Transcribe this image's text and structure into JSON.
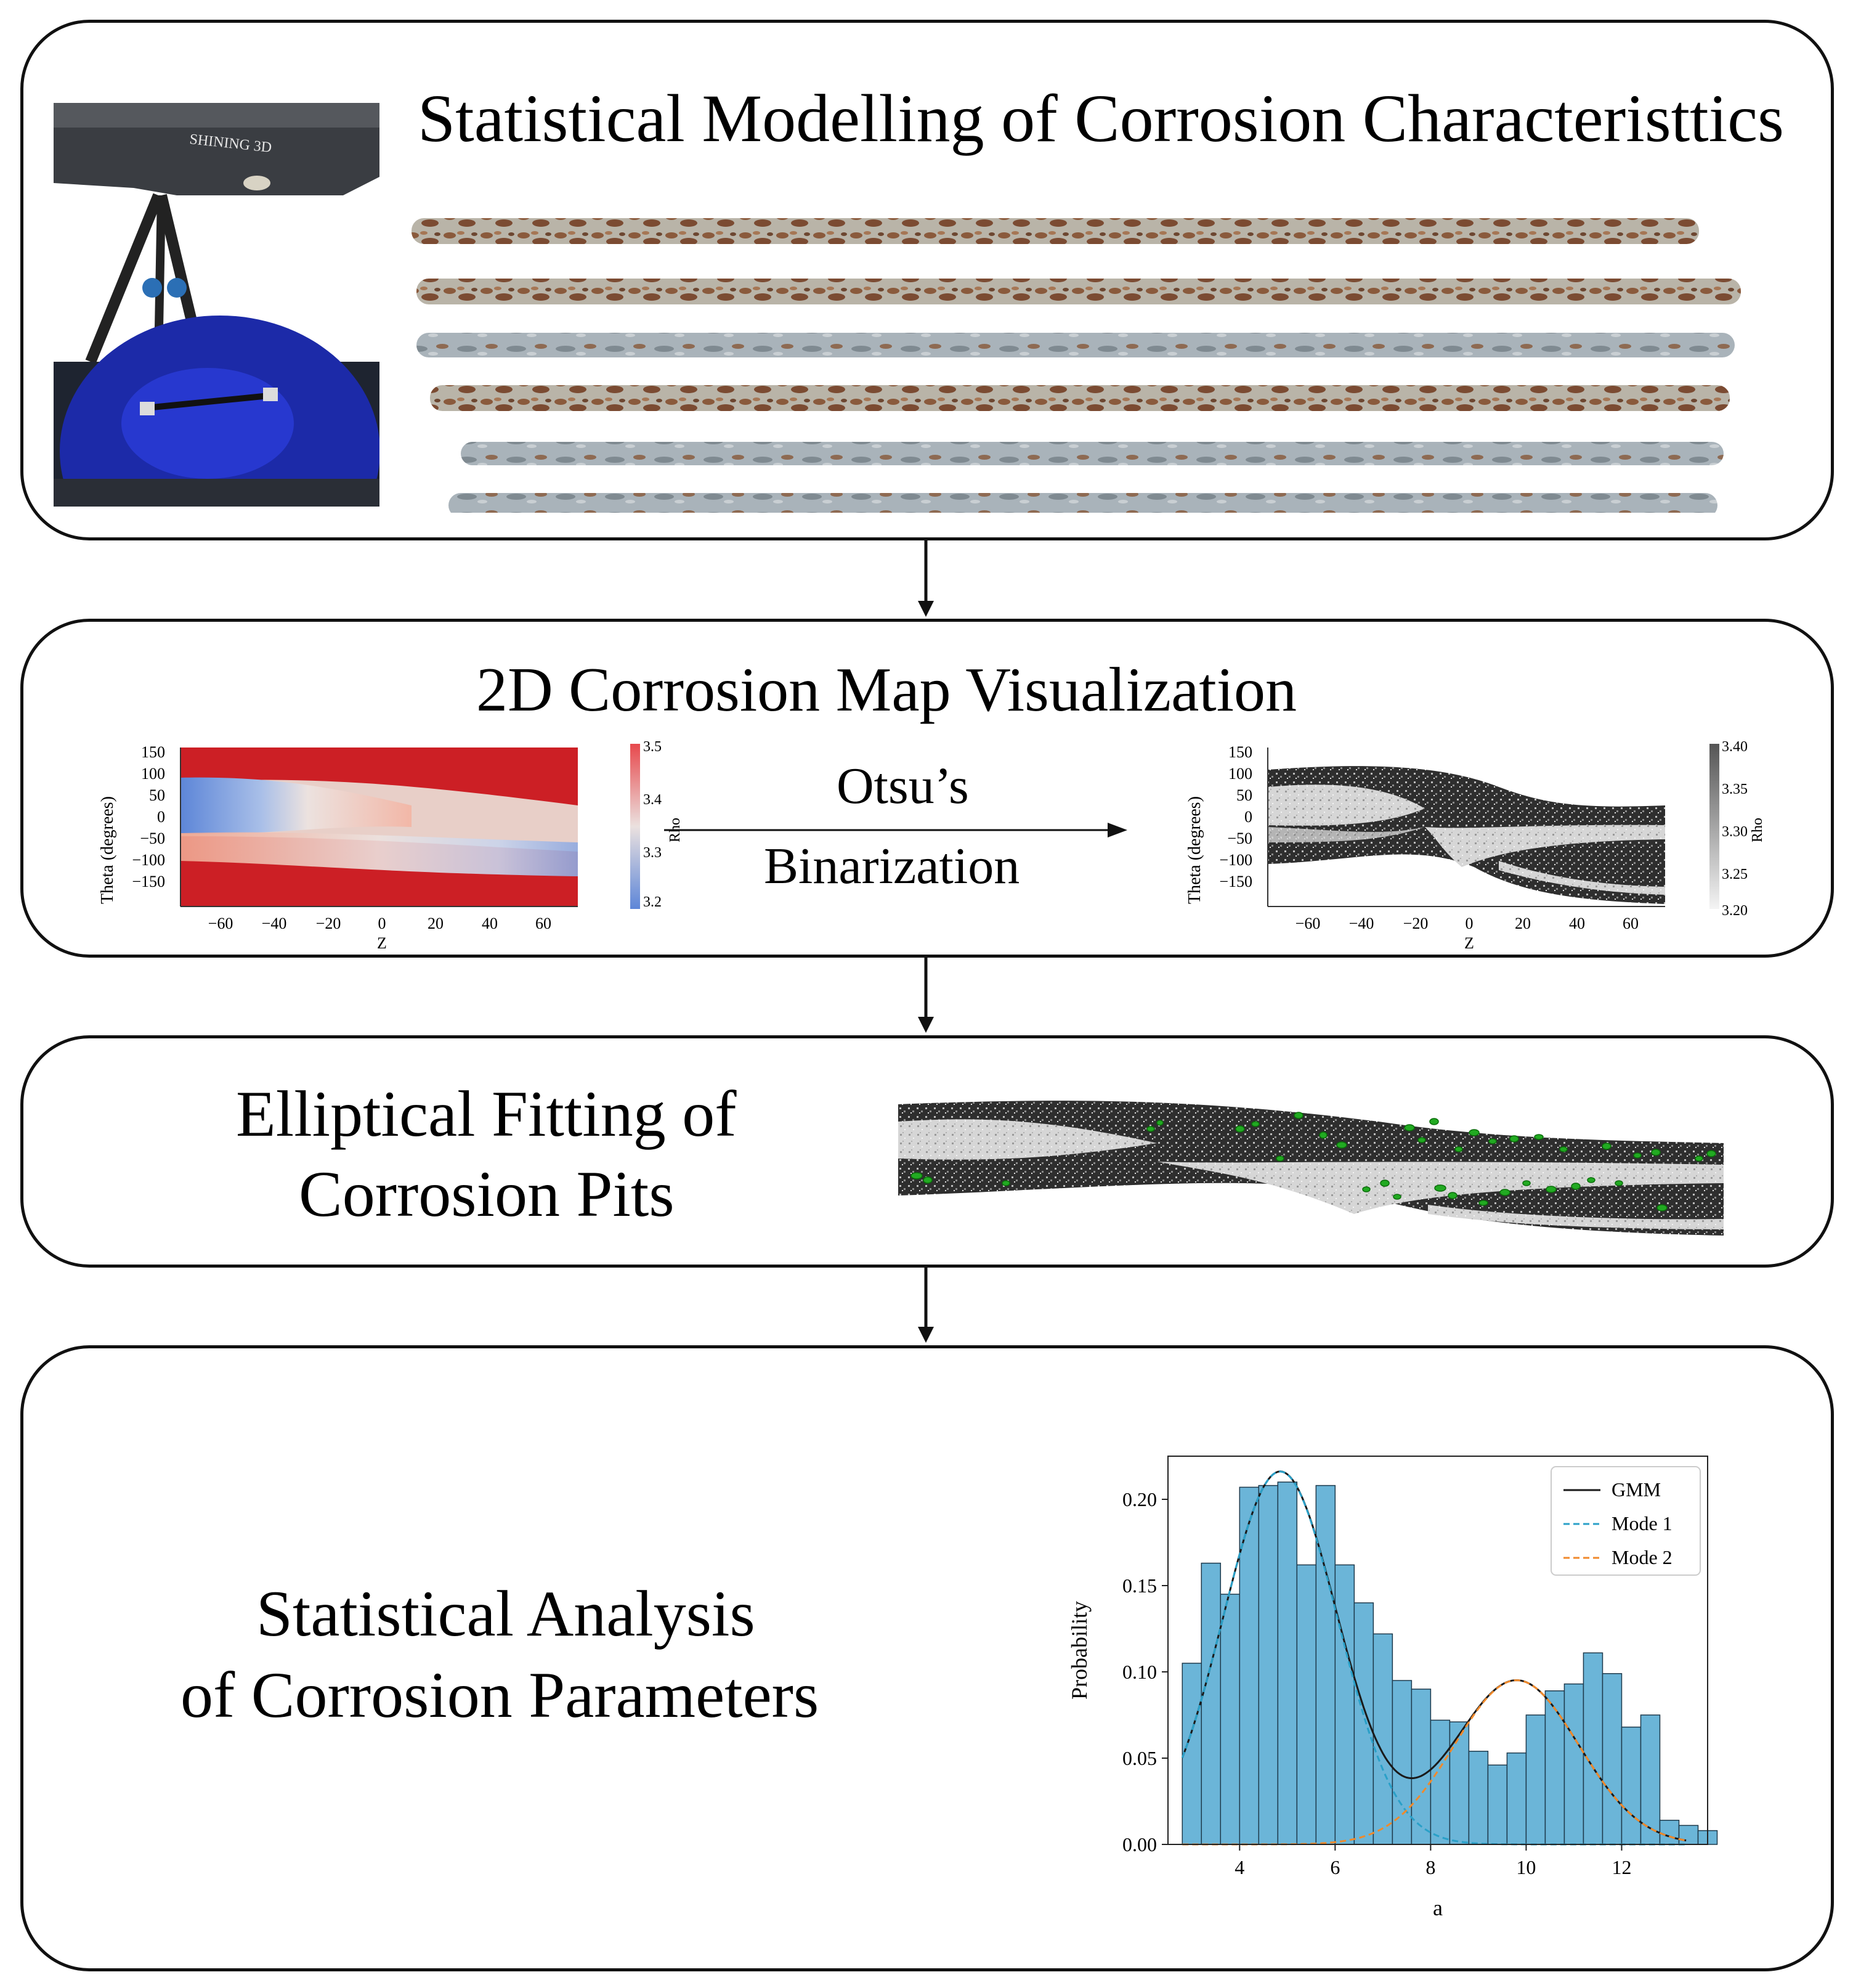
{
  "stage1": {
    "title": "Statistical Modelling of Corrosion Characteristtics",
    "scanner_brand": "SHINING 3D"
  },
  "stage2": {
    "title": "2D Corrosion Map Visualization",
    "arrow_label_line1": "Otsu’s",
    "arrow_label_line2": "Binarization",
    "map_left": {
      "ylabel": "Theta (degrees)",
      "xlabel": "Z",
      "yticks": [
        "150",
        "100",
        "50",
        "0",
        "−50",
        "−100",
        "−150"
      ],
      "xticks": [
        "−60",
        "−40",
        "−20",
        "0",
        "20",
        "40",
        "60"
      ],
      "colorbar_label": "Rho",
      "colorbar_ticks": [
        "3.5",
        "3.4",
        "3.3",
        "3.2"
      ],
      "colors": {
        "high": "#cc1f25",
        "low": "#5d86d8",
        "mid": "#e9e3e2"
      }
    },
    "map_right": {
      "ylabel": "Theta (degrees)",
      "xlabel": "Z",
      "yticks": [
        "150",
        "100",
        "50",
        "0",
        "−50",
        "−100",
        "−150"
      ],
      "xticks": [
        "−60",
        "−40",
        "−20",
        "0",
        "20",
        "40",
        "60"
      ],
      "colorbar_label": "Rho",
      "colorbar_ticks": [
        "3.40",
        "3.35",
        "3.30",
        "3.25",
        "3.20"
      ]
    }
  },
  "stage3": {
    "title_line1": "Elliptical Fitting of",
    "title_line2": "Corrosion Pits",
    "pit_color": "#22aa22"
  },
  "stage4": {
    "title_line1": "Statistical Analysis",
    "title_line2": "of Corrosion Parameters"
  },
  "chart_data": {
    "type": "bar",
    "title": "",
    "xlabel": "a",
    "ylabel": "Probability",
    "xlim": [
      2.5,
      13.8
    ],
    "ylim": [
      0,
      0.225
    ],
    "xticks": [
      "4",
      "6",
      "8",
      "10",
      "12"
    ],
    "yticks": [
      "0.00",
      "0.05",
      "0.10",
      "0.15",
      "0.20"
    ],
    "bin_edges_start": 2.8,
    "bin_width": 0.4,
    "values": [
      0.105,
      0.163,
      0.145,
      0.207,
      0.208,
      0.21,
      0.162,
      0.208,
      0.162,
      0.14,
      0.122,
      0.095,
      0.09,
      0.072,
      0.071,
      0.054,
      0.046,
      0.053,
      0.075,
      0.089,
      0.093,
      0.111,
      0.099,
      0.068,
      0.075,
      0.014,
      0.011,
      0.008
    ],
    "series": [
      {
        "name": "GMM",
        "color": "#1a1a1a",
        "style": "solid"
      },
      {
        "name": "Mode 1",
        "color": "#2aa0c8",
        "style": "dashed",
        "mean": 4.85,
        "sd": 1.2,
        "weight": 0.65
      },
      {
        "name": "Mode 2",
        "color": "#f08a2c",
        "style": "dashed",
        "mean": 9.8,
        "sd": 1.3,
        "weight": 0.31
      }
    ],
    "bar_color": "#6bb5d8",
    "legend_position": "top-right"
  }
}
